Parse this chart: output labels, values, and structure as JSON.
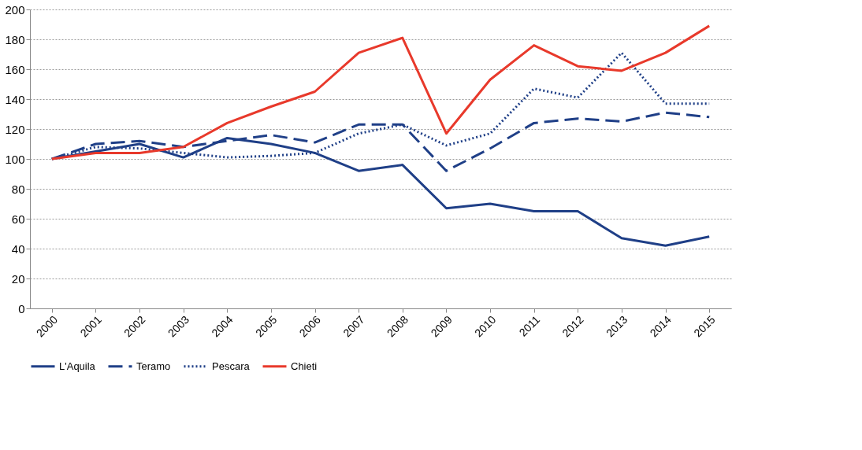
{
  "chart_data": {
    "type": "line",
    "categories": [
      "2000",
      "2001",
      "2002",
      "2003",
      "2004",
      "2005",
      "2006",
      "2007",
      "2008",
      "2009",
      "2010",
      "2011",
      "2012",
      "2013",
      "2014",
      "2015"
    ],
    "series": [
      {
        "name": "L'Aquila",
        "color": "#1f3f87",
        "line_style": "solid",
        "values": [
          100,
          105,
          110,
          101,
          114,
          110,
          104,
          92,
          96,
          67,
          70,
          65,
          65,
          47,
          42,
          48
        ]
      },
      {
        "name": "Teramo",
        "color": "#1f3f87",
        "line_style": "dashed",
        "values": [
          100,
          110,
          112,
          108,
          112,
          116,
          111,
          123,
          123,
          92,
          107,
          124,
          127,
          125,
          131,
          128
        ]
      },
      {
        "name": "Pescara",
        "color": "#1f3f87",
        "line_style": "dotted",
        "values": [
          100,
          108,
          107,
          104,
          101,
          102,
          104,
          117,
          123,
          109,
          117,
          147,
          141,
          171,
          137,
          137
        ]
      },
      {
        "name": "Chieti",
        "color": "#e8392b",
        "line_style": "solid",
        "values": [
          100,
          104,
          104,
          108,
          124,
          135,
          145,
          171,
          181,
          117,
          153,
          176,
          162,
          159,
          171,
          189
        ]
      }
    ],
    "ylim": [
      0,
      200
    ],
    "yticks": [
      0,
      20,
      40,
      60,
      80,
      100,
      120,
      140,
      160,
      180,
      200
    ],
    "grid": "y",
    "legend": "bottom",
    "marker": "none"
  }
}
